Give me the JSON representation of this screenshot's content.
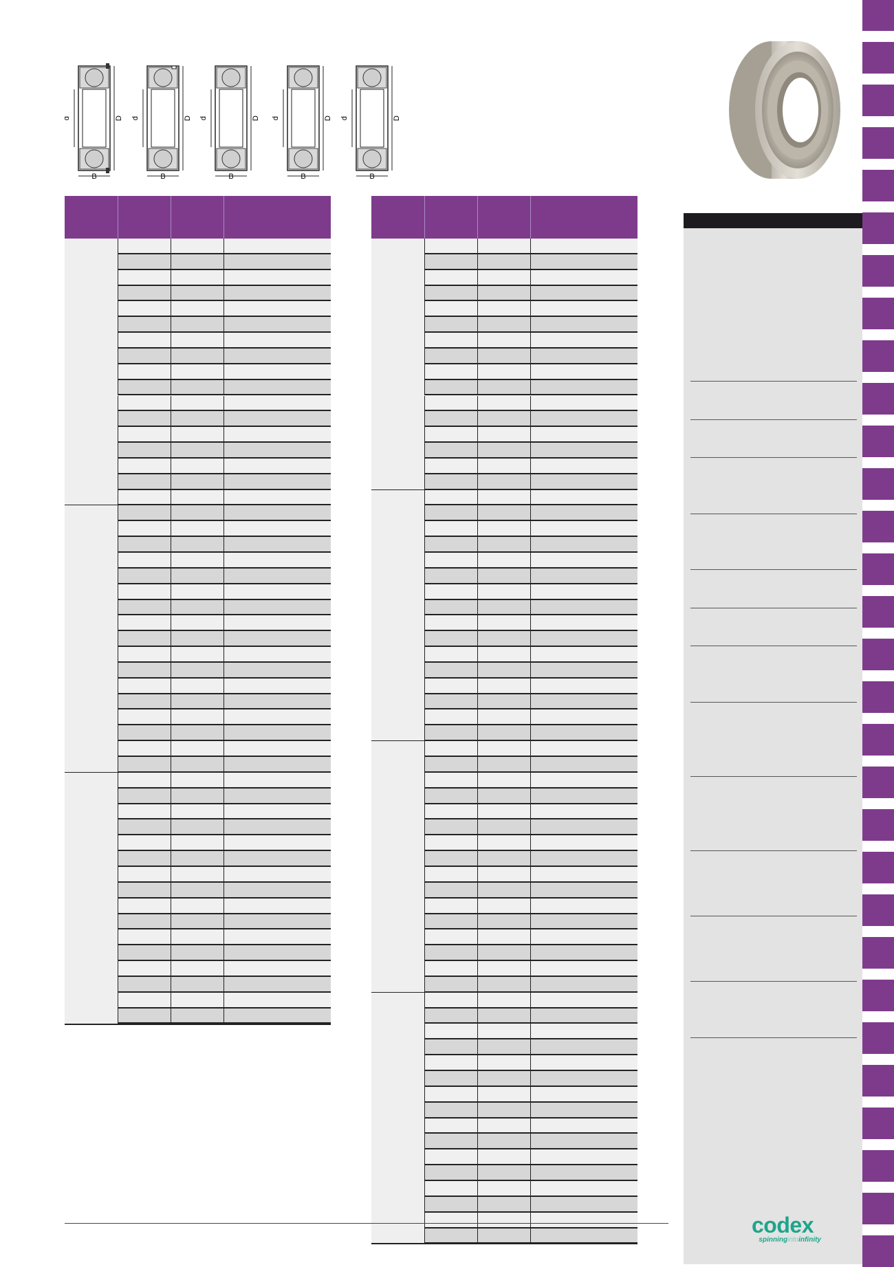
{
  "theme": {
    "accent": "#7e3b8c",
    "logo_color": "#1ea58a"
  },
  "diagrams": {
    "labels": {
      "d": "d",
      "D": "D",
      "B": "B"
    },
    "count": 5
  },
  "tables": [
    {
      "groups": [
        17,
        17,
        16
      ]
    },
    {
      "groups": [
        16,
        16,
        16,
        16
      ]
    }
  ],
  "brand": {
    "name": "codex",
    "tagline_a": "spinning",
    "tagline_b": "into",
    "tagline_c": "infinity"
  }
}
